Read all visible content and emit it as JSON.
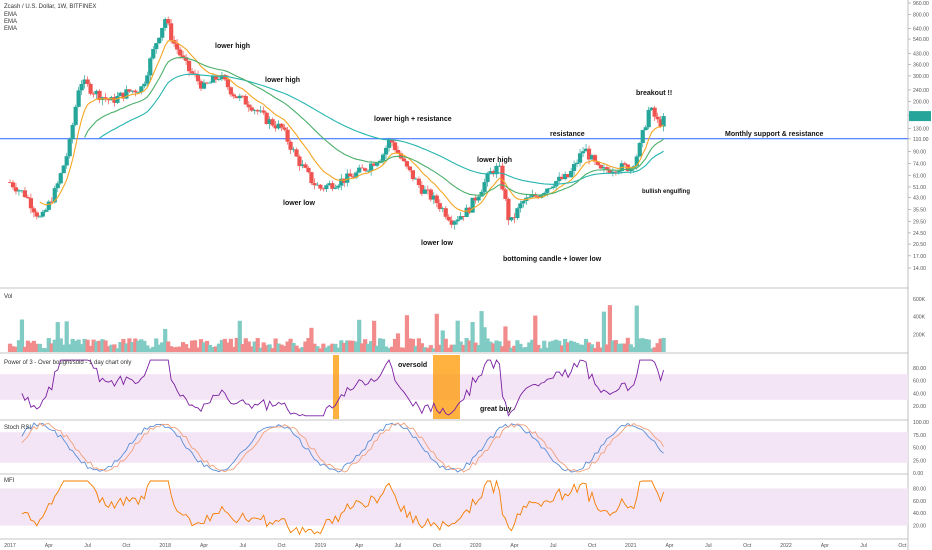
{
  "header": {
    "symbol_line": "Zcash / U.S. Dollar, 1W, BITFINEX",
    "indicators": [
      "EMA",
      "EMA",
      "EMA"
    ]
  },
  "colors": {
    "up": "#26a69a",
    "down": "#ef5350",
    "up_vol": "#80cbc4",
    "down_vol": "#f28b8b",
    "ema_fast": "#f5a623",
    "ema_mid": "#26b5b0",
    "ema_slow": "#4caf6a",
    "hline": "#2962ff",
    "rsi_line": "#7b1fa2",
    "band_fill": "#f3e5f5",
    "mfi_line": "#f57c00",
    "highlight": "#ff9800",
    "stoch_k": "#5c8ed6",
    "stoch_d": "#f2a07b",
    "price_label": "#26a69a",
    "axis_text": "#555555"
  },
  "price_axis": {
    "scale": "log",
    "ticks": [
      "960.00",
      "800.00",
      "640.00",
      "540.00",
      "430.00",
      "360.00",
      "300.00",
      "240.00",
      "200.00",
      "160.00",
      "130.00",
      "110.00",
      "90.00",
      "74.00",
      "61.00",
      "51.00",
      "43.00",
      "35.50",
      "29.50",
      "24.50",
      "20.50",
      "17.00",
      "14.00"
    ],
    "current_price_label": ""
  },
  "time_axis": {
    "labels": [
      "2017",
      "Apr",
      "Jul",
      "Oct",
      "2018",
      "Apr",
      "Jul",
      "Oct",
      "2019",
      "Apr",
      "Jul",
      "Oct",
      "2020",
      "Apr",
      "Jul",
      "Oct",
      "2021",
      "Apr",
      "Jul",
      "Oct",
      "2022",
      "Apr",
      "Jul",
      "Oct"
    ]
  },
  "annotations": [
    {
      "text": "lower high"
    },
    {
      "text": "lower high"
    },
    {
      "text": "lower high + resistance"
    },
    {
      "text": "resistance"
    },
    {
      "text": "breakout !!"
    },
    {
      "text": "Monthly support & resistance"
    },
    {
      "text": "lower high"
    },
    {
      "text": "bullish engulfing"
    },
    {
      "text": "lower low"
    },
    {
      "text": "lower low"
    },
    {
      "text": "bottoming candle + lower low"
    }
  ],
  "panes": {
    "volume": {
      "title": "Vol",
      "ticks": [
        "600K",
        "400K",
        "200K"
      ]
    },
    "power3": {
      "title": "Power of 3 - Over bought/sold - 1 day chart only",
      "ticks": [
        "80.00",
        "60.00",
        "40.00",
        "20.00"
      ],
      "notes": [
        "oversold",
        "great buy"
      ]
    },
    "stoch": {
      "title": "Stoch RSI",
      "ticks": [
        "100.00",
        "75.00",
        "50.00",
        "25.00",
        "0.00"
      ]
    },
    "mfi": {
      "title": "MFI",
      "ticks": [
        "80.00",
        "60.00",
        "40.00",
        "20.00"
      ]
    }
  },
  "chart_data": {
    "type": "candlestick",
    "source": "BITFINEX",
    "interval": "1W",
    "series": [
      {
        "name": "Zcash / U.S. Dollar",
        "y_approx_weekly_close": [
          [
            2017.0,
            55
          ],
          [
            2017.1,
            45
          ],
          [
            2017.2,
            30
          ],
          [
            2017.3,
            50
          ],
          [
            2017.38,
            95
          ],
          [
            2017.45,
            280
          ],
          [
            2017.55,
            230
          ],
          [
            2017.65,
            200
          ],
          [
            2017.75,
            230
          ],
          [
            2017.85,
            250
          ],
          [
            2017.95,
            550
          ],
          [
            2018.0,
            750
          ],
          [
            2018.05,
            520
          ],
          [
            2018.15,
            330
          ],
          [
            2018.25,
            250
          ],
          [
            2018.35,
            300
          ],
          [
            2018.45,
            220
          ],
          [
            2018.55,
            190
          ],
          [
            2018.65,
            150
          ],
          [
            2018.75,
            130
          ],
          [
            2018.85,
            80
          ],
          [
            2018.95,
            55
          ],
          [
            2019.0,
            50
          ],
          [
            2019.1,
            55
          ],
          [
            2019.2,
            60
          ],
          [
            2019.3,
            70
          ],
          [
            2019.4,
            85
          ],
          [
            2019.45,
            110
          ],
          [
            2019.55,
            70
          ],
          [
            2019.65,
            50
          ],
          [
            2019.75,
            40
          ],
          [
            2019.85,
            30
          ],
          [
            2019.95,
            35
          ],
          [
            2020.1,
            65
          ],
          [
            2020.15,
            70
          ],
          [
            2020.22,
            28
          ],
          [
            2020.3,
            40
          ],
          [
            2020.4,
            45
          ],
          [
            2020.5,
            55
          ],
          [
            2020.6,
            60
          ],
          [
            2020.7,
            95
          ],
          [
            2020.8,
            65
          ],
          [
            2020.9,
            70
          ],
          [
            2021.0,
            70
          ],
          [
            2021.05,
            90
          ],
          [
            2021.12,
            180
          ],
          [
            2021.18,
            140
          ],
          [
            2021.22,
            150
          ]
        ]
      },
      {
        "name": "EMA",
        "type": "line"
      },
      {
        "name": "EMA",
        "type": "line"
      },
      {
        "name": "EMA",
        "type": "line"
      }
    ],
    "horizontal_lines": [
      {
        "label": "Monthly support & resistance",
        "y": 110
      }
    ],
    "x_range": [
      "2017",
      "Oct 2022"
    ],
    "y_range": [
      14,
      960
    ],
    "y_scale": "log"
  }
}
